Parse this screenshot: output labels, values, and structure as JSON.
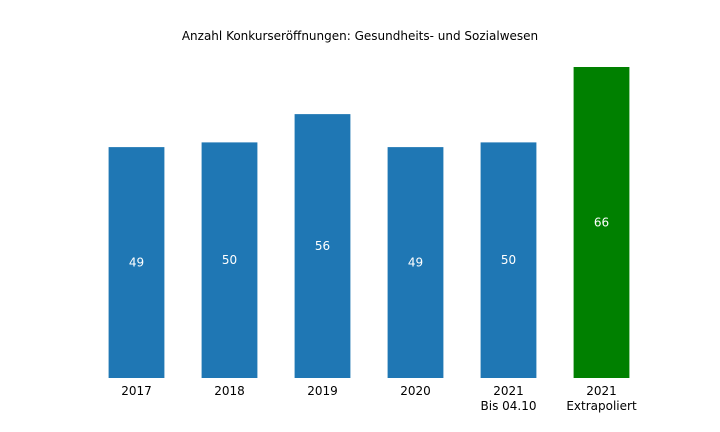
{
  "chart_data": {
    "type": "bar",
    "title": "Anzahl Konkurseröffnungen: Gesundheits- und Sozialwesen",
    "xlabel": "",
    "ylabel": "",
    "categories": [
      [
        "2017"
      ],
      [
        "2018"
      ],
      [
        "2019"
      ],
      [
        "2020"
      ],
      [
        "2021",
        "Bis 04.10"
      ],
      [
        "2021",
        "Extrapoliert"
      ]
    ],
    "values": [
      49,
      50,
      56,
      49,
      50,
      66
    ],
    "bar_colors": [
      "#1f77b4",
      "#1f77b4",
      "#1f77b4",
      "#1f77b4",
      "#1f77b4",
      "#008000"
    ],
    "ylim": [
      0,
      66
    ],
    "grid": false,
    "legend": "none"
  }
}
